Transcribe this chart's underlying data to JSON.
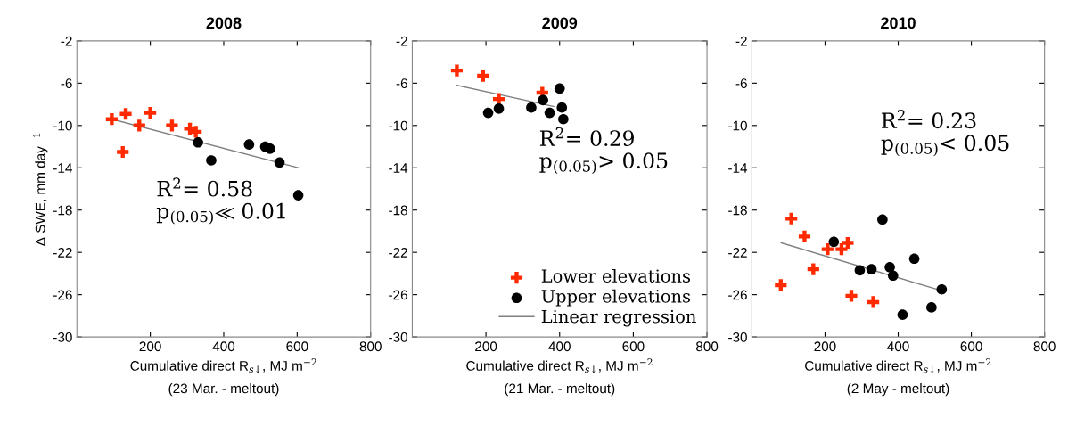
{
  "chart_data": [
    {
      "type": "scatter",
      "title": "2008",
      "xlabel": "Cumulative direct R$_{s↓}$, MJ m$^{−2}$\n(23 Mar. - meltout)",
      "ylabel": "Δ SWE, mm day$^{−1}$",
      "xlim": [
        0,
        800
      ],
      "xticks": [
        200,
        400,
        600,
        800
      ],
      "ylim": [
        -30,
        -2
      ],
      "yticks": [
        -30,
        -26,
        -22,
        -18,
        -14,
        -10,
        -6,
        -2
      ],
      "grid": false,
      "legend": false,
      "annotations": [
        "R$^{2}$= 0.58",
        "p$_{(0.05)}$≪ 0.01"
      ],
      "series": [
        {
          "type": "scatter",
          "marker": "cross",
          "color": "#ff2a00",
          "x": [
            95,
            133,
            125,
            170,
            200,
            259,
            308,
            324
          ],
          "values": [
            -9.4,
            -8.9,
            -12.5,
            -10.0,
            -8.8,
            -10.0,
            -10.3,
            -10.6
          ]
        },
        {
          "type": "scatter",
          "marker": "circle",
          "color": "#000000",
          "x": [
            330,
            366,
            469,
            513,
            526,
            552,
            603
          ],
          "values": [
            -11.6,
            -13.3,
            -11.8,
            -12.0,
            -12.2,
            -13.5,
            -16.6
          ]
        },
        {
          "type": "line",
          "marker": "none",
          "color": "#808080",
          "x": [
            95,
            603
          ],
          "values": [
            -9.4,
            -14.0
          ]
        }
      ]
    },
    {
      "type": "scatter",
      "title": "2009",
      "xlabel": "Cumulative direct R$_{s↓}$, MJ m$^{−2}$\n(21 Mar. - meltout)",
      "xlim": [
        0,
        800
      ],
      "xticks": [
        200,
        400,
        600,
        800
      ],
      "ylim": [
        -30,
        -2
      ],
      "yticks": [
        -30,
        -26,
        -22,
        -18,
        -14,
        -10,
        -6,
        -2
      ],
      "grid": false,
      "legend": "bottom right",
      "annotations": [
        "R$^{2}$= 0.29",
        "p$_{(0.05)}$> 0.05"
      ],
      "series": [
        {
          "type": "scatter",
          "name": "Lower elevations",
          "marker": "cross",
          "color": "#ff2a00",
          "x": [
            121,
            192,
            235,
            353
          ],
          "values": [
            -4.8,
            -5.3,
            -7.5,
            -6.9
          ]
        },
        {
          "type": "scatter",
          "name": "Upper elevations",
          "marker": "circle",
          "color": "#000000",
          "x": [
            206,
            235,
            323,
            355,
            373,
            400,
            406,
            410
          ],
          "values": [
            -8.8,
            -8.4,
            -8.3,
            -7.6,
            -8.8,
            -6.5,
            -8.3,
            -9.4
          ]
        },
        {
          "type": "line",
          "name": "Linear regression",
          "marker": "none",
          "color": "#808080",
          "x": [
            121,
            384
          ],
          "values": [
            -6.2,
            -8.2
          ]
        }
      ]
    },
    {
      "type": "scatter",
      "title": "2010",
      "xlabel": "Cumulative direct R$_{s↓}$, MJ m$^{−2}$\n(2 May - meltout)",
      "xlim": [
        0,
        800
      ],
      "xticks": [
        200,
        400,
        600,
        800
      ],
      "ylim": [
        -30,
        -2
      ],
      "yticks": [
        -30,
        -26,
        -22,
        -18,
        -14,
        -10,
        -6,
        -2
      ],
      "grid": false,
      "legend": false,
      "annotations": [
        "R$^{2}$= 0.23",
        "p$_{(0.05)}$< 0.05"
      ],
      "series": [
        {
          "type": "scatter",
          "marker": "cross",
          "color": "#ff2a00",
          "x": [
            79,
            108,
            144,
            168,
            207,
            245,
            262,
            272,
            332
          ],
          "values": [
            -25.1,
            -18.8,
            -20.5,
            -23.6,
            -21.7,
            -21.7,
            -21.1,
            -26.1,
            -26.7
          ]
        },
        {
          "type": "scatter",
          "marker": "circle",
          "color": "#000000",
          "x": [
            224,
            357,
            295,
            327,
            377,
            386,
            444,
            412,
            491,
            519
          ],
          "values": [
            -21.0,
            -18.9,
            -23.7,
            -23.6,
            -23.4,
            -24.2,
            -22.6,
            -27.9,
            -27.2,
            -25.5
          ]
        },
        {
          "type": "line",
          "marker": "none",
          "color": "#808080",
          "x": [
            80,
            507
          ],
          "values": [
            -21.1,
            -25.5
          ]
        }
      ]
    }
  ]
}
